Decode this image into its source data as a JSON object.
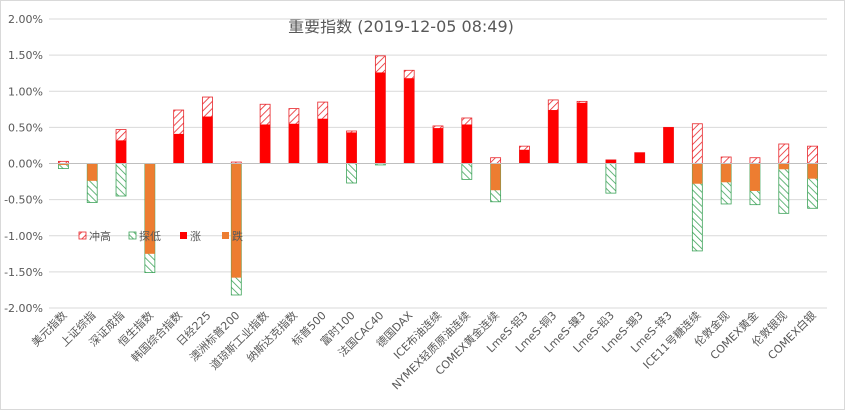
{
  "chart_data": {
    "type": "bar",
    "title": "重要指数 (2019-12-05 08:49)",
    "categories": [
      "美元指数",
      "上证综指",
      "深证成指",
      "恒生指数",
      "韩国综合指数",
      "日经225",
      "澳洲标普200",
      "道琼斯工业指数",
      "纳斯达克指数",
      "标普500",
      "富时100",
      "法国CAC40",
      "德国DAX",
      "ICE布油连续",
      "NYMEX轻质原油连续",
      "COMEX黄金连续",
      "LmeS-铝3",
      "LmeS-铜3",
      "LmeS-镍3",
      "LmeS-铅3",
      "LmeS-锡3",
      "LmeS-锌3",
      "ICE11号糖连续",
      "伦敦金现",
      "COMEX黄金",
      "伦敦银现",
      "COMEX白银"
    ],
    "ylim": [
      -2.0,
      2.0
    ],
    "yticks": [
      "-2.00%",
      "-1.50%",
      "-1.00%",
      "-0.50%",
      "0.00%",
      "0.50%",
      "1.00%",
      "1.50%",
      "2.00%"
    ],
    "ytick_values": [
      -2.0,
      -1.5,
      -1.0,
      -0.5,
      0.0,
      0.5,
      1.0,
      1.5,
      2.0
    ],
    "grid": true,
    "legend_position": "left-middle",
    "series": [
      {
        "name": "冲高",
        "key": "high",
        "color": "#e8252a",
        "pattern": "red-hatch",
        "values": [
          0.03,
          0.0,
          0.47,
          0.0,
          0.74,
          0.92,
          0.02,
          0.82,
          0.76,
          0.85,
          0.45,
          1.49,
          1.29,
          0.52,
          0.63,
          0.08,
          0.24,
          0.88,
          0.86,
          0.05,
          0.15,
          0.5,
          0.55,
          0.09,
          0.08,
          0.27,
          0.24
        ]
      },
      {
        "name": "探低",
        "key": "low",
        "color": "#3fa45b",
        "pattern": "green-hatch",
        "values": [
          -0.07,
          -0.54,
          -0.45,
          -1.51,
          0.0,
          0.0,
          -1.82,
          0.0,
          0.0,
          0.0,
          -0.27,
          -0.02,
          0.0,
          0.0,
          -0.22,
          -0.53,
          0.0,
          0.0,
          0.0,
          -0.41,
          0.0,
          0.0,
          -1.21,
          -0.56,
          -0.57,
          -0.69,
          -0.62
        ]
      },
      {
        "name": "涨",
        "key": "up",
        "color": "#ff0000",
        "values": [
          0,
          0,
          0.32,
          0,
          0.41,
          0.65,
          0,
          0.54,
          0.55,
          0.62,
          0.43,
          1.26,
          1.18,
          0.49,
          0.54,
          0,
          0.19,
          0.74,
          0.84,
          0.05,
          0.15,
          0.5,
          0,
          0,
          0,
          0,
          0
        ]
      },
      {
        "name": "跌",
        "key": "down",
        "color": "#ed7d31",
        "values": [
          -0.02,
          -0.24,
          0,
          -1.25,
          0,
          0,
          -1.58,
          0,
          0,
          0,
          0,
          0,
          0,
          0,
          0,
          -0.37,
          0,
          0,
          0,
          0,
          0,
          0,
          -0.28,
          -0.26,
          -0.38,
          -0.08,
          -0.21
        ]
      }
    ]
  }
}
